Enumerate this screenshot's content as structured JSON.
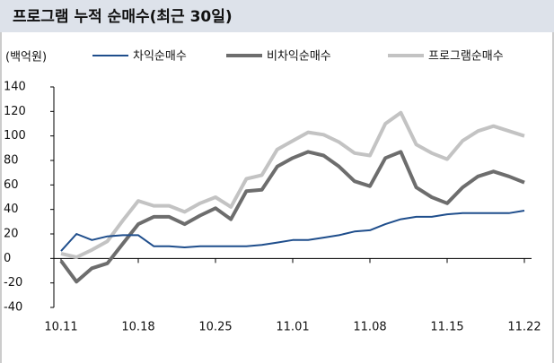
{
  "chart_data": {
    "type": "line",
    "title": "프로그램 누적 순매수(최근 30일)",
    "y_label": "(백억원)",
    "categories": [
      "10.11",
      null,
      null,
      null,
      null,
      "10.18",
      null,
      null,
      null,
      null,
      "10.25",
      null,
      null,
      null,
      null,
      "11.01",
      null,
      null,
      null,
      null,
      "11.08",
      null,
      null,
      null,
      null,
      "11.15",
      null,
      null,
      null,
      null,
      "11.22"
    ],
    "series": [
      {
        "name": "차익순매수",
        "color": "#1f4e8c",
        "values": [
          6,
          20,
          15,
          18,
          19,
          19,
          10,
          10,
          9,
          10,
          10,
          10,
          10,
          11,
          13,
          15,
          15,
          17,
          19,
          22,
          23,
          28,
          32,
          34,
          34,
          36,
          37,
          37,
          37,
          37,
          39
        ]
      },
      {
        "name": "비차익순매수",
        "color": "#6d6d6d",
        "values": [
          -2,
          -19,
          -8,
          -4,
          12,
          28,
          34,
          34,
          28,
          35,
          41,
          32,
          55,
          56,
          75,
          82,
          87,
          84,
          75,
          63,
          59,
          82,
          87,
          58,
          50,
          45,
          58,
          67,
          71,
          67,
          62
        ]
      },
      {
        "name": "프로그램순매수",
        "color": "#c3c3c3",
        "values": [
          4,
          1,
          7,
          14,
          31,
          47,
          43,
          43,
          38,
          45,
          50,
          42,
          65,
          68,
          89,
          96,
          103,
          101,
          95,
          86,
          84,
          110,
          119,
          93,
          86,
          81,
          96,
          104,
          108,
          104,
          100
        ]
      }
    ],
    "ylim": [
      -40,
      140
    ],
    "yticks": [
      -40,
      -20,
      0,
      20,
      40,
      60,
      80,
      100,
      120,
      140
    ],
    "grid": false
  }
}
